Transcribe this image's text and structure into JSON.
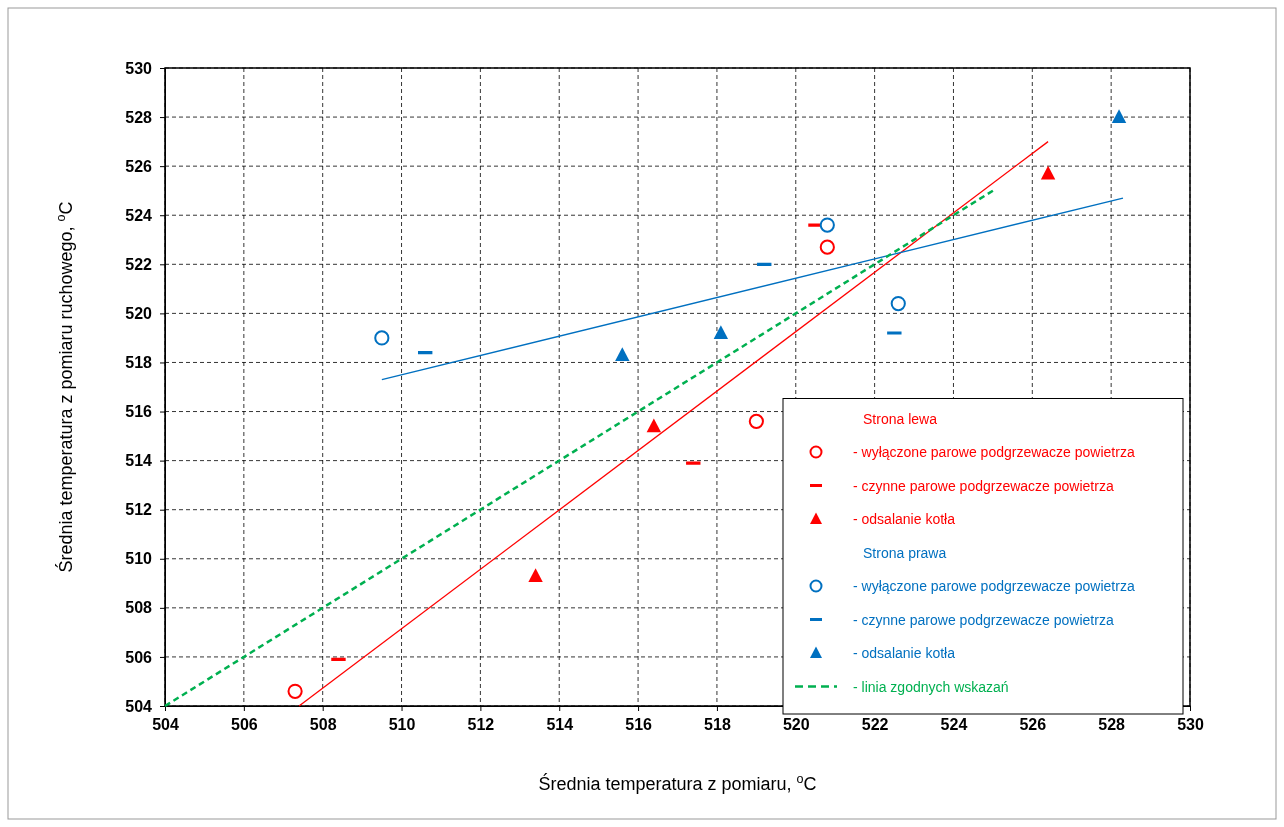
{
  "chart_data": {
    "type": "scatter",
    "xlabel": "Średnia temperatura z pomiaru, $^{o}$C",
    "ylabel": "Średnia temperatura z pomiaru ruchowego, $^{o}$C",
    "xlim": [
      504,
      530
    ],
    "ylim": [
      504,
      530
    ],
    "xticks": [
      504,
      506,
      508,
      510,
      512,
      514,
      516,
      518,
      520,
      522,
      524,
      526,
      528,
      530
    ],
    "yticks": [
      504,
      506,
      508,
      510,
      512,
      514,
      516,
      518,
      520,
      522,
      524,
      526,
      528,
      530
    ],
    "grid": true,
    "legend": "bottom right",
    "annotations": [
      "Strona lewa",
      "Strona prawa"
    ],
    "series": [
      {
        "name": "- wyłączone parowe podgrzewacze powietrza",
        "color": "#ff0000",
        "marker": "circle",
        "x": [
          507.3,
          520.8,
          519.0
        ],
        "values": [
          504.6,
          522.7,
          515.6
        ]
      },
      {
        "name": "- czynne parowe podgrzewacze powietrza",
        "color": "#ff0000",
        "x": [
          508.4,
          517.4,
          520.5
        ],
        "values": [
          505.9,
          513.9,
          523.6
        ]
      },
      {
        "name": "- odsalanie kotła",
        "color": "#ff0000",
        "marker": "triangle",
        "x": [
          513.4,
          516.4,
          526.4
        ],
        "values": [
          509.3,
          515.4,
          525.7
        ]
      },
      {
        "name": "- wyłączone parowe podgrzewacze powietrza",
        "color": "#0070c0",
        "marker": "circle",
        "x": [
          509.5,
          520.8,
          522.6
        ],
        "values": [
          519.0,
          523.6,
          520.4
        ]
      },
      {
        "name": "- czynne parowe podgrzewacze powietrza",
        "color": "#0070c0",
        "x": [
          510.6,
          519.2,
          522.5
        ],
        "values": [
          518.4,
          522.0,
          519.2
        ]
      },
      {
        "name": "- odsalanie kotła",
        "color": "#0070c0",
        "marker": "triangle",
        "x": [
          515.6,
          518.1,
          528.2
        ],
        "values": [
          518.3,
          519.2,
          528.0
        ]
      },
      {
        "type": "line",
        "color": "#ff0000",
        "marker": "none",
        "line_style": "solid",
        "x": [
          507.4,
          526.4
        ],
        "values": [
          504.0,
          527.0
        ]
      },
      {
        "type": "line",
        "color": "#0070c0",
        "marker": "none",
        "line_style": "solid",
        "x": [
          509.5,
          528.3
        ],
        "values": [
          517.3,
          524.7
        ]
      },
      {
        "name": "- linia zgodnych wskazań",
        "type": "line",
        "color": "#00b050",
        "marker": "none",
        "line_style": "dashed",
        "x": [
          504,
          525
        ],
        "values": [
          504,
          525
        ]
      }
    ]
  }
}
